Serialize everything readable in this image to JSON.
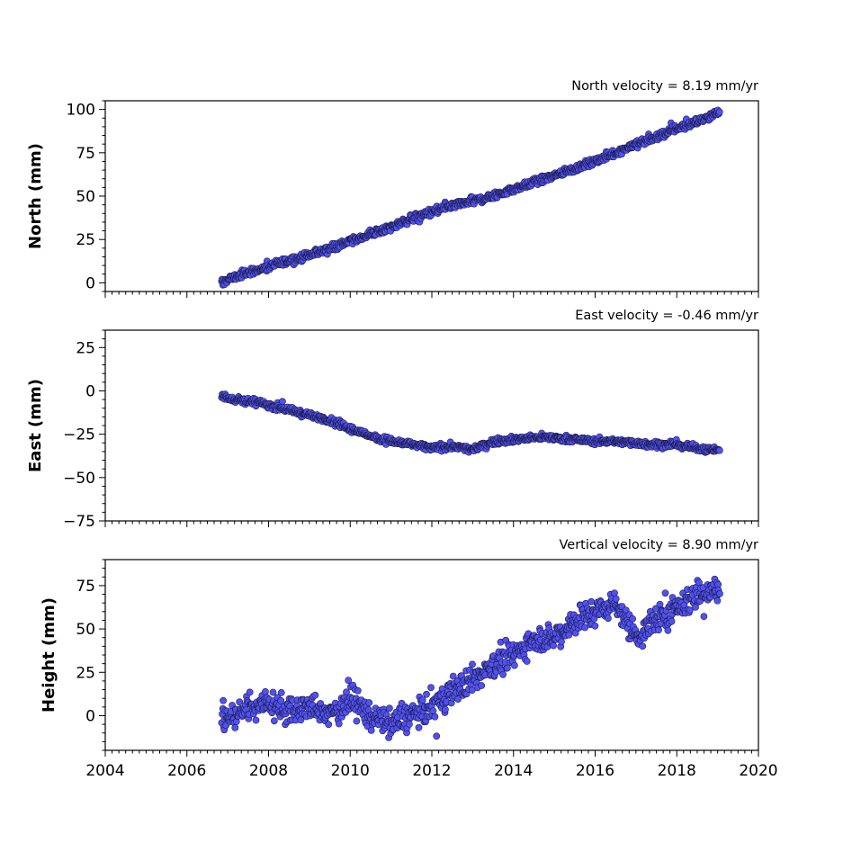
{
  "chart_data": [
    {
      "type": "scatter",
      "title": "North velocity = 8.19 mm/yr",
      "ylabel": "North (mm)",
      "xlim": [
        2004,
        2020
      ],
      "ylim": [
        -5,
        105
      ],
      "yticks": [
        0,
        25,
        50,
        75,
        100
      ],
      "series": [
        {
          "color": "#5151f2",
          "x": [
            2006.8,
            2007.0,
            2007.5,
            2008.0,
            2008.5,
            2009.0,
            2009.5,
            2010.0,
            2010.5,
            2011.0,
            2011.5,
            2012.0,
            2012.5,
            2013.0,
            2013.5,
            2014.0,
            2014.5,
            2015.0,
            2015.5,
            2016.0,
            2016.5,
            2017.0,
            2017.5,
            2018.0,
            2018.5,
            2019.0
          ],
          "y": [
            -1,
            2,
            6,
            9,
            13,
            16,
            20,
            24,
            28,
            32,
            37,
            41,
            44,
            47,
            50,
            54,
            58,
            62,
            66,
            70,
            75,
            80,
            84,
            89,
            93,
            98
          ]
        }
      ]
    },
    {
      "type": "scatter",
      "title": "East velocity = -0.46 mm/yr",
      "ylabel": "East (mm)",
      "xlim": [
        2004,
        2020
      ],
      "ylim": [
        -75,
        35
      ],
      "yticks": [
        -75,
        -50,
        -25,
        0,
        25
      ],
      "series": [
        {
          "color": "#5151f2",
          "x": [
            2006.8,
            2007.0,
            2007.5,
            2008.0,
            2008.5,
            2009.0,
            2009.5,
            2010.0,
            2010.5,
            2011.0,
            2011.5,
            2012.0,
            2012.5,
            2013.0,
            2013.5,
            2014.0,
            2014.5,
            2015.0,
            2015.5,
            2016.0,
            2016.5,
            2017.0,
            2017.5,
            2018.0,
            2018.5,
            2019.0
          ],
          "y": [
            -2,
            -4,
            -6,
            -8,
            -11,
            -14,
            -17,
            -22,
            -26,
            -29,
            -31,
            -33,
            -32,
            -34,
            -29,
            -28,
            -27,
            -27,
            -28,
            -29,
            -29,
            -30,
            -31,
            -31,
            -33,
            -34
          ]
        }
      ]
    },
    {
      "type": "scatter",
      "title": "Vertical velocity = 8.90 mm/yr",
      "ylabel": "Height (mm)",
      "xlim": [
        2004,
        2020
      ],
      "xticks": [
        2004,
        2006,
        2008,
        2010,
        2012,
        2014,
        2016,
        2018,
        2020
      ],
      "ylim": [
        -20,
        90
      ],
      "yticks": [
        0,
        25,
        50,
        75
      ],
      "series": [
        {
          "color": "#5151f2",
          "x": [
            2006.8,
            2007.0,
            2007.5,
            2008.0,
            2008.5,
            2009.0,
            2009.5,
            2010.0,
            2010.5,
            2011.0,
            2011.5,
            2012.0,
            2012.5,
            2013.0,
            2013.5,
            2014.0,
            2014.5,
            2015.0,
            2015.5,
            2016.0,
            2016.5,
            2017.0,
            2017.5,
            2018.0,
            2018.5,
            2019.0
          ],
          "y": [
            0,
            -2,
            5,
            8,
            2,
            5,
            0,
            10,
            0,
            -5,
            0,
            5,
            15,
            20,
            30,
            35,
            45,
            45,
            55,
            60,
            65,
            45,
            55,
            62,
            70,
            72
          ]
        }
      ]
    }
  ]
}
